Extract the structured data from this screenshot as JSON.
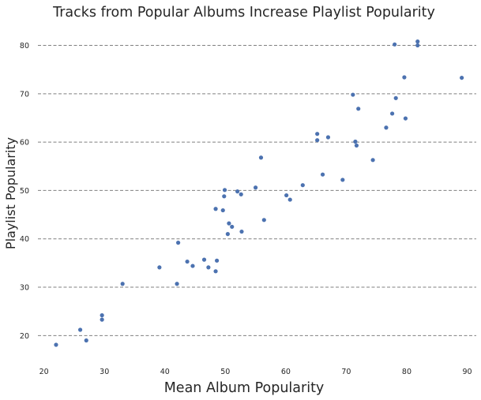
{
  "chart_data": {
    "type": "scatter",
    "title": "Tracks from Popular Albums Increase Playlist Popularity",
    "xlabel": "Mean Album Popularity",
    "ylabel": "Playlist Popularity",
    "xlim": [
      19,
      91.5
    ],
    "ylim": [
      15,
      84
    ],
    "xticks": [
      20,
      30,
      40,
      50,
      60,
      70,
      80,
      90
    ],
    "yticks": [
      20,
      30,
      40,
      50,
      60,
      70,
      80
    ],
    "grid": "y-dashed",
    "color": "#4c72b0",
    "points": [
      [
        22.0,
        18.1
      ],
      [
        26.0,
        21.2
      ],
      [
        27.0,
        19.0
      ],
      [
        29.6,
        24.2
      ],
      [
        29.6,
        23.3
      ],
      [
        33.0,
        30.7
      ],
      [
        39.1,
        34.1
      ],
      [
        42.0,
        30.7
      ],
      [
        42.2,
        39.2
      ],
      [
        43.7,
        35.3
      ],
      [
        44.6,
        34.4
      ],
      [
        46.5,
        35.7
      ],
      [
        47.2,
        34.1
      ],
      [
        48.4,
        33.3
      ],
      [
        48.6,
        35.5
      ],
      [
        48.4,
        46.2
      ],
      [
        49.6,
        45.9
      ],
      [
        49.8,
        48.8
      ],
      [
        49.9,
        50.1
      ],
      [
        50.4,
        41.0
      ],
      [
        50.6,
        43.2
      ],
      [
        51.1,
        42.5
      ],
      [
        52.0,
        49.8
      ],
      [
        52.6,
        49.2
      ],
      [
        52.7,
        41.5
      ],
      [
        55.0,
        50.6
      ],
      [
        55.9,
        56.8
      ],
      [
        56.4,
        43.9
      ],
      [
        60.1,
        49.0
      ],
      [
        60.7,
        48.1
      ],
      [
        62.8,
        51.1
      ],
      [
        65.2,
        61.7
      ],
      [
        65.2,
        60.4
      ],
      [
        66.1,
        53.3
      ],
      [
        67.0,
        61.0
      ],
      [
        69.4,
        52.2
      ],
      [
        71.1,
        69.8
      ],
      [
        71.5,
        60.1
      ],
      [
        71.7,
        59.3
      ],
      [
        72.0,
        66.9
      ],
      [
        74.4,
        56.3
      ],
      [
        76.6,
        63.0
      ],
      [
        77.6,
        65.9
      ],
      [
        78.0,
        80.2
      ],
      [
        78.2,
        69.1
      ],
      [
        79.6,
        73.4
      ],
      [
        79.8,
        64.9
      ],
      [
        81.8,
        80.8
      ],
      [
        81.8,
        80.0
      ],
      [
        89.1,
        73.3
      ]
    ]
  }
}
